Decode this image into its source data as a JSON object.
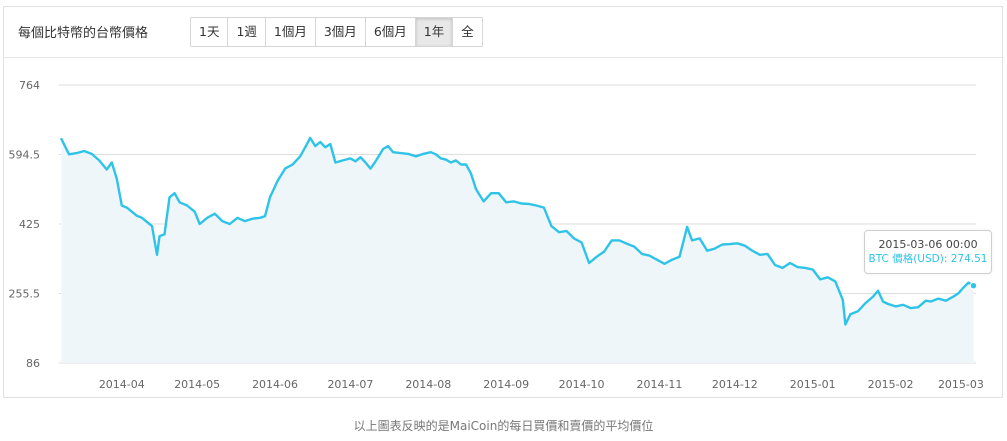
{
  "header": {
    "title": "每個比特幣的台幣價格",
    "ranges": [
      {
        "label": "1天",
        "active": false
      },
      {
        "label": "1週",
        "active": false
      },
      {
        "label": "1個月",
        "active": false
      },
      {
        "label": "3個月",
        "active": false
      },
      {
        "label": "6個月",
        "active": false
      },
      {
        "label": "1年",
        "active": true
      },
      {
        "label": "全",
        "active": false
      }
    ]
  },
  "tooltip": {
    "date": "2015-03-06 00:00",
    "value_text": "BTC 價格(USD): 274.51"
  },
  "footnote": "以上圖表反映的是MaiCoin的每日買價和賣價的平均價位",
  "colors": {
    "line": "#2fc3e8",
    "area": "#eef6fa",
    "grid": "#dedede",
    "axis_text": "#666666"
  },
  "chart_data": {
    "type": "area",
    "ylim": [
      86,
      764
    ],
    "yticks": [
      "86",
      "255.5",
      "425",
      "594.5",
      "764"
    ],
    "xtick_labels": [
      "2014-04",
      "2014-05",
      "2014-06",
      "2014-07",
      "2014-08",
      "2014-09",
      "2014-10",
      "2014-11",
      "2014-12",
      "2015-01",
      "2015-02",
      "2015-03"
    ],
    "xlim": [
      "2014-03-07",
      "2015-03-07"
    ],
    "grid": true,
    "series": [
      {
        "points": [
          [
            "2014-03-08",
            632
          ],
          [
            "2014-03-11",
            595
          ],
          [
            "2014-03-14",
            598
          ],
          [
            "2014-03-17",
            603
          ],
          [
            "2014-03-20",
            596
          ],
          [
            "2014-03-23",
            580
          ],
          [
            "2014-03-26",
            558
          ],
          [
            "2014-03-28",
            575
          ],
          [
            "2014-03-30",
            535
          ],
          [
            "2014-04-01",
            470
          ],
          [
            "2014-04-03",
            465
          ],
          [
            "2014-04-05",
            455
          ],
          [
            "2014-04-07",
            445
          ],
          [
            "2014-04-09",
            440
          ],
          [
            "2014-04-11",
            430
          ],
          [
            "2014-04-13",
            420
          ],
          [
            "2014-04-15",
            350
          ],
          [
            "2014-04-16",
            395
          ],
          [
            "2014-04-18",
            400
          ],
          [
            "2014-04-20",
            490
          ],
          [
            "2014-04-22",
            500
          ],
          [
            "2014-04-24",
            478
          ],
          [
            "2014-04-27",
            470
          ],
          [
            "2014-04-30",
            455
          ],
          [
            "2014-05-02",
            425
          ],
          [
            "2014-05-05",
            440
          ],
          [
            "2014-05-08",
            450
          ],
          [
            "2014-05-11",
            432
          ],
          [
            "2014-05-14",
            425
          ],
          [
            "2014-05-17",
            440
          ],
          [
            "2014-05-20",
            432
          ],
          [
            "2014-05-23",
            438
          ],
          [
            "2014-05-26",
            440
          ],
          [
            "2014-05-28",
            444
          ],
          [
            "2014-05-30",
            490
          ],
          [
            "2014-06-02",
            530
          ],
          [
            "2014-06-05",
            560
          ],
          [
            "2014-06-08",
            570
          ],
          [
            "2014-06-11",
            590
          ],
          [
            "2014-06-13",
            612
          ],
          [
            "2014-06-15",
            635
          ],
          [
            "2014-06-17",
            615
          ],
          [
            "2014-06-19",
            625
          ],
          [
            "2014-06-21",
            612
          ],
          [
            "2014-06-23",
            620
          ],
          [
            "2014-06-25",
            575
          ],
          [
            "2014-06-28",
            580
          ],
          [
            "2014-07-01",
            585
          ],
          [
            "2014-07-03",
            578
          ],
          [
            "2014-07-05",
            588
          ],
          [
            "2014-07-07",
            575
          ],
          [
            "2014-07-09",
            560
          ],
          [
            "2014-07-11",
            578
          ],
          [
            "2014-07-14",
            608
          ],
          [
            "2014-07-16",
            615
          ],
          [
            "2014-07-18",
            600
          ],
          [
            "2014-07-21",
            598
          ],
          [
            "2014-07-24",
            596
          ],
          [
            "2014-07-27",
            590
          ],
          [
            "2014-07-30",
            596
          ],
          [
            "2014-08-02",
            600
          ],
          [
            "2014-08-04",
            595
          ],
          [
            "2014-08-06",
            585
          ],
          [
            "2014-08-08",
            582
          ],
          [
            "2014-08-10",
            575
          ],
          [
            "2014-08-12",
            580
          ],
          [
            "2014-08-14",
            570
          ],
          [
            "2014-08-16",
            570
          ],
          [
            "2014-08-18",
            548
          ],
          [
            "2014-08-20",
            510
          ],
          [
            "2014-08-23",
            480
          ],
          [
            "2014-08-26",
            500
          ],
          [
            "2014-08-29",
            500
          ],
          [
            "2014-09-01",
            478
          ],
          [
            "2014-09-04",
            480
          ],
          [
            "2014-09-07",
            475
          ],
          [
            "2014-09-10",
            474
          ],
          [
            "2014-09-13",
            470
          ],
          [
            "2014-09-16",
            465
          ],
          [
            "2014-09-19",
            420
          ],
          [
            "2014-09-22",
            405
          ],
          [
            "2014-09-25",
            408
          ],
          [
            "2014-09-28",
            390
          ],
          [
            "2014-10-01",
            380
          ],
          [
            "2014-10-04",
            330
          ],
          [
            "2014-10-07",
            345
          ],
          [
            "2014-10-10",
            358
          ],
          [
            "2014-10-13",
            385
          ],
          [
            "2014-10-16",
            385
          ],
          [
            "2014-10-19",
            377
          ],
          [
            "2014-10-22",
            370
          ],
          [
            "2014-10-25",
            352
          ],
          [
            "2014-10-28",
            348
          ],
          [
            "2014-10-31",
            338
          ],
          [
            "2014-11-03",
            328
          ],
          [
            "2014-11-06",
            338
          ],
          [
            "2014-11-09",
            345
          ],
          [
            "2014-11-12",
            418
          ],
          [
            "2014-11-14",
            385
          ],
          [
            "2014-11-17",
            390
          ],
          [
            "2014-11-20",
            360
          ],
          [
            "2014-11-23",
            365
          ],
          [
            "2014-11-26",
            375
          ],
          [
            "2014-11-29",
            376
          ],
          [
            "2014-12-02",
            378
          ],
          [
            "2014-12-05",
            372
          ],
          [
            "2014-12-08",
            360
          ],
          [
            "2014-12-11",
            350
          ],
          [
            "2014-12-14",
            352
          ],
          [
            "2014-12-17",
            325
          ],
          [
            "2014-12-20",
            318
          ],
          [
            "2014-12-23",
            330
          ],
          [
            "2014-12-26",
            320
          ],
          [
            "2014-12-29",
            318
          ],
          [
            "2015-01-01",
            314
          ],
          [
            "2015-01-04",
            290
          ],
          [
            "2015-01-07",
            295
          ],
          [
            "2015-01-10",
            285
          ],
          [
            "2015-01-13",
            240
          ],
          [
            "2015-01-14",
            180
          ],
          [
            "2015-01-16",
            205
          ],
          [
            "2015-01-19",
            212
          ],
          [
            "2015-01-22",
            232
          ],
          [
            "2015-01-25",
            248
          ],
          [
            "2015-01-27",
            262
          ],
          [
            "2015-01-29",
            236
          ],
          [
            "2015-01-31",
            230
          ],
          [
            "2015-02-03",
            224
          ],
          [
            "2015-02-06",
            228
          ],
          [
            "2015-02-09",
            220
          ],
          [
            "2015-02-12",
            222
          ],
          [
            "2015-02-15",
            238
          ],
          [
            "2015-02-17",
            236
          ],
          [
            "2015-02-20",
            243
          ],
          [
            "2015-02-23",
            238
          ],
          [
            "2015-02-26",
            248
          ],
          [
            "2015-02-28",
            256
          ],
          [
            "2015-03-02",
            270
          ],
          [
            "2015-03-04",
            282
          ],
          [
            "2015-03-06",
            274.51
          ]
        ]
      }
    ],
    "highlight": {
      "x": "2015-03-06",
      "y": 274.51
    }
  }
}
